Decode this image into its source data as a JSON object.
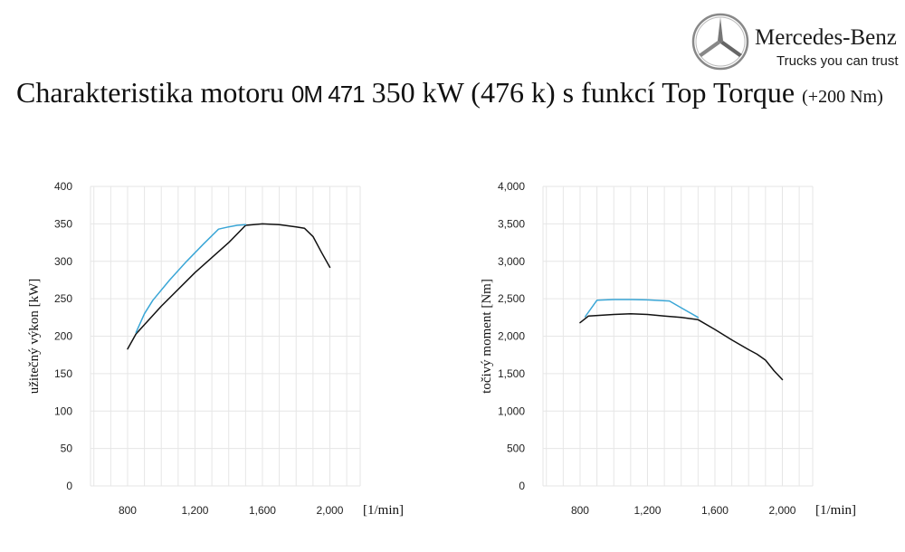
{
  "brand": {
    "name": "Mercedes-Benz",
    "slogan": "Trucks you can trust"
  },
  "title": {
    "prefix": "Charakteristika motoru",
    "model": "0M 471",
    "main": "350 kW (476 k) s funkcí Top Torque",
    "suffix": "(+200 Nm)"
  },
  "colors": {
    "standard_line": "#111111",
    "top_torque_line": "#3aa6d6"
  },
  "chart_data": [
    {
      "id": "power",
      "type": "line",
      "ylabel": "užitečný výkon [kW]",
      "x_unit": "[1/min]",
      "xlim": [
        580,
        2180
      ],
      "ylim": [
        0,
        400
      ],
      "xticks": [
        800,
        1200,
        1600,
        2000
      ],
      "xtick_labels": [
        "800",
        "1,200",
        "1,600",
        "2,000"
      ],
      "yticks": [
        0,
        50,
        100,
        150,
        200,
        250,
        300,
        350,
        400
      ],
      "ytick_labels": [
        "0",
        "50",
        "100",
        "150",
        "200",
        "250",
        "300",
        "350",
        "400"
      ],
      "grid": true,
      "series": [
        {
          "color": "#111111",
          "x": [
            800,
            850,
            1000,
            1200,
            1400,
            1500,
            1600,
            1700,
            1800,
            1850,
            1900,
            1950,
            2000
          ],
          "y": [
            183,
            203,
            240,
            285,
            325,
            348,
            350,
            349,
            346,
            344,
            333,
            312,
            292
          ]
        },
        {
          "color": "#3aa6d6",
          "x": [
            850,
            900,
            950,
            1050,
            1150,
            1250,
            1340,
            1400,
            1450,
            1500
          ],
          "y": [
            205,
            230,
            248,
            275,
            300,
            323,
            343,
            346,
            348,
            349
          ]
        }
      ]
    },
    {
      "id": "torque",
      "type": "line",
      "ylabel": "točivý moment [Nm]",
      "x_unit": "[1/min]",
      "xlim": [
        580,
        2180
      ],
      "ylim": [
        0,
        4000
      ],
      "xticks": [
        800,
        1200,
        1600,
        2000
      ],
      "xtick_labels": [
        "800",
        "1,200",
        "1,600",
        "2,000"
      ],
      "yticks": [
        0,
        500,
        1000,
        1500,
        2000,
        2500,
        3000,
        3500,
        4000
      ],
      "ytick_labels": [
        "0",
        "500",
        "1,000",
        "1,500",
        "2,000",
        "2,500",
        "3,000",
        "3,500",
        "4,000"
      ],
      "grid": true,
      "series": [
        {
          "color": "#111111",
          "x": [
            800,
            850,
            1000,
            1100,
            1200,
            1300,
            1400,
            1500,
            1600,
            1700,
            1800,
            1850,
            1900,
            1950,
            2000
          ],
          "y": [
            2180,
            2270,
            2290,
            2300,
            2290,
            2270,
            2250,
            2220,
            2090,
            1950,
            1820,
            1760,
            1680,
            1540,
            1420
          ]
        },
        {
          "color": "#3aa6d6",
          "x": [
            830,
            900,
            1000,
            1100,
            1200,
            1330,
            1400,
            1500
          ],
          "y": [
            2260,
            2480,
            2490,
            2490,
            2485,
            2470,
            2380,
            2250
          ]
        }
      ]
    }
  ]
}
